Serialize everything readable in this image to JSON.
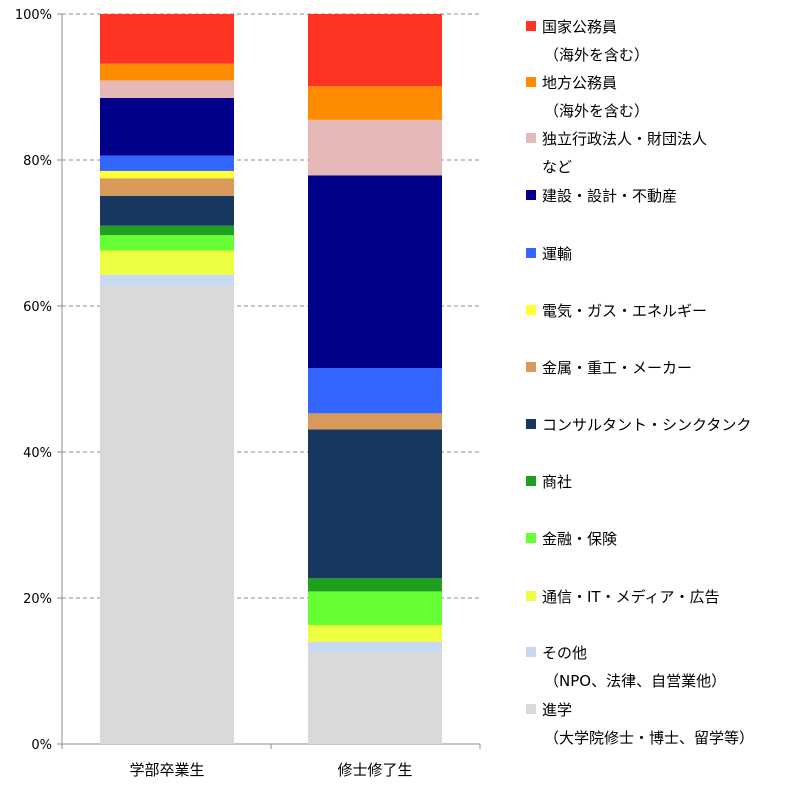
{
  "chart_data": {
    "type": "bar",
    "stacked": true,
    "normalized": true,
    "categories": [
      "学部卒業生",
      "修士修了生"
    ],
    "ylim": [
      0,
      100
    ],
    "yticks": [
      0,
      20,
      40,
      60,
      80,
      100
    ],
    "ytick_labels": [
      "0%",
      "20%",
      "40%",
      "60%",
      "80%",
      "100%"
    ],
    "grid": "horizontal-dashed",
    "legend_position": "right",
    "series": [
      {
        "name": "進学",
        "name_line2": "（大学院修士・博士、留学等）",
        "color": "#d9d9d9",
        "values": [
          62.8,
          12.6
        ]
      },
      {
        "name": "その他",
        "name_line2": "（NPO、法律、自営業他）",
        "color": "#c6d9f1",
        "values": [
          1.5,
          1.4
        ]
      },
      {
        "name": "通信・IT・メディア・広告",
        "name_line2": "",
        "color": "#eeff41",
        "values": [
          3.3,
          2.3
        ]
      },
      {
        "name": "金融・保険",
        "name_line2": "",
        "color": "#66ff33",
        "values": [
          2.1,
          4.6
        ]
      },
      {
        "name": "商社",
        "name_line2": "",
        "color": "#1ea01e",
        "values": [
          1.3,
          1.8
        ]
      },
      {
        "name": "コンサルタント・シンクタンク",
        "name_line2": "",
        "color": "#17375e",
        "values": [
          4.1,
          20.4
        ]
      },
      {
        "name": "金属・重工・メーカー",
        "name_line2": "",
        "color": "#d79a5a",
        "values": [
          2.4,
          2.2
        ]
      },
      {
        "name": "電気・ガス・エネルギー",
        "name_line2": "",
        "color": "#ffff33",
        "values": [
          1.0,
          0.0
        ]
      },
      {
        "name": "運輸",
        "name_line2": "",
        "color": "#3366ff",
        "values": [
          2.1,
          6.2
        ]
      },
      {
        "name": "建設・設計・不動産",
        "name_line2": "",
        "color": "#00008b",
        "values": [
          7.9,
          26.4
        ]
      },
      {
        "name": "独立行政法人・財団法人",
        "name_line2": "など",
        "color": "#e6b9b8",
        "values": [
          2.4,
          7.6
        ]
      },
      {
        "name": "地方公務員",
        "name_line2": "（海外を含む）",
        "color": "#ff8c00",
        "values": [
          2.3,
          4.6
        ]
      },
      {
        "name": "国家公務員",
        "name_line2": "（海外を含む）",
        "color": "#ff3322",
        "values": [
          6.8,
          9.9
        ]
      }
    ]
  }
}
